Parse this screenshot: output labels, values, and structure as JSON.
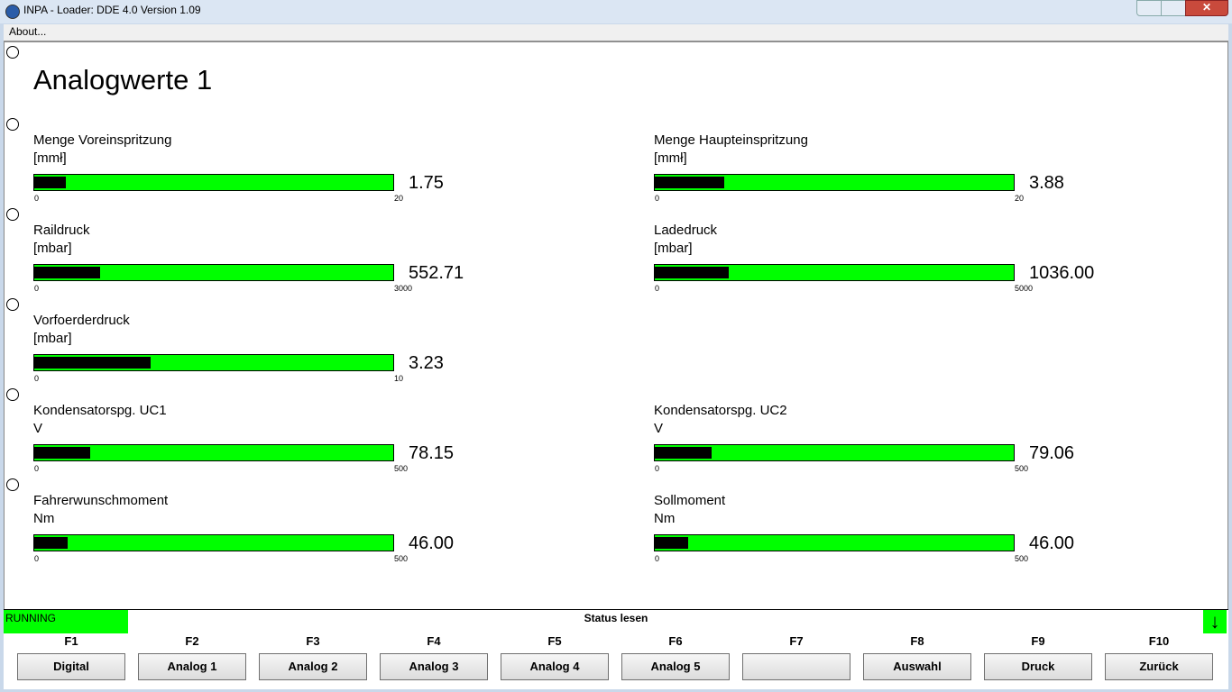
{
  "window": {
    "title": "INPA - Loader:  DDE 4.0 Version 1.09",
    "menu": [
      "About..."
    ]
  },
  "screen": {
    "title": "Analogwerte 1",
    "rows": [
      [
        {
          "name": "Menge Voreinspritzung",
          "unit": "[mmł]",
          "min": 0,
          "max": 20,
          "value": 1.75,
          "value_label": "1.75"
        },
        {
          "name": "Menge Haupteinspritzung",
          "unit": "[mmł]",
          "min": 0,
          "max": 20,
          "value": 3.88,
          "value_label": "3.88"
        }
      ],
      [
        {
          "name": "Raildruck",
          "unit": "[mbar]",
          "min": 0,
          "max": 3000,
          "value": 552.71,
          "value_label": "552.71"
        },
        {
          "name": "Ladedruck",
          "unit": "[mbar]",
          "min": 0,
          "max": 5000,
          "value": 1036,
          "value_label": "1036.00"
        }
      ],
      [
        {
          "name": "Vorfoerderdruck",
          "unit": "[mbar]",
          "min": 0,
          "max": 10,
          "value": 3.23,
          "value_label": "3.23"
        }
      ],
      [
        {
          "name": "Kondensatorspg. UC1",
          "unit": "V",
          "min": 0,
          "max": 500,
          "value": 78.15,
          "value_label": "78.15"
        },
        {
          "name": "Kondensatorspg. UC2",
          "unit": "V",
          "min": 0,
          "max": 500,
          "value": 79.06,
          "value_label": "79.06"
        }
      ],
      [
        {
          "name": "Fahrerwunschmoment",
          "unit": "Nm",
          "min": 0,
          "max": 500,
          "value": 46,
          "value_label": "46.00"
        },
        {
          "name": "Sollmoment",
          "unit": "Nm",
          "min": 0,
          "max": 500,
          "value": 46,
          "value_label": "46.00"
        }
      ]
    ]
  },
  "status": {
    "state": "RUNNING",
    "text": "Status lesen"
  },
  "function_keys": [
    {
      "key": "F1",
      "label": "Digital"
    },
    {
      "key": "F2",
      "label": "Analog 1"
    },
    {
      "key": "F3",
      "label": "Analog 2"
    },
    {
      "key": "F4",
      "label": "Analog 3"
    },
    {
      "key": "F5",
      "label": "Analog 4"
    },
    {
      "key": "F6",
      "label": "Analog 5"
    },
    {
      "key": "F7"
    },
    {
      "key": "F8",
      "label": "Auswahl"
    },
    {
      "key": "F9",
      "label": "Druck"
    },
    {
      "key": "F10",
      "label": "Zurück"
    }
  ]
}
